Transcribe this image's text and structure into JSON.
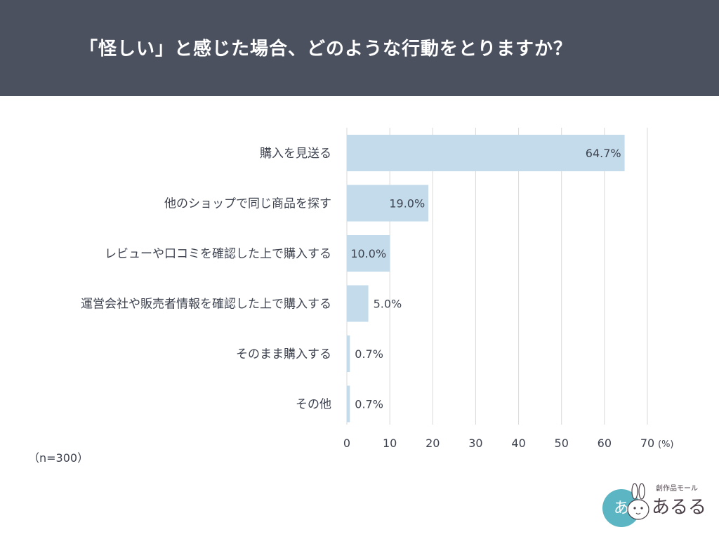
{
  "header": {
    "title": "「怪しい」と感じた場合、どのような行動をとりますか？"
  },
  "note": "（n=300）",
  "logo": {
    "tagline": "創作品モール",
    "name": "あるる",
    "badge": "あ"
  },
  "colors": {
    "header_bg": "#4b515f",
    "bar": "#c3dbea",
    "grid": "#d9d9d9",
    "text": "#3e4350",
    "logo_circle": "#5bb5c2",
    "logo_text": "#4a3f47"
  },
  "chart_data": {
    "type": "bar",
    "orientation": "horizontal",
    "categories": [
      "購入を見送る",
      "他のショップで同じ商品を探す",
      "レビューや口コミを確認した上で購入する",
      "運営会社や販売者情報を確認した上で購入する",
      "そのまま購入する",
      "その他"
    ],
    "values": [
      64.7,
      19.0,
      10.0,
      5.0,
      0.7,
      0.7
    ],
    "value_labels": [
      "64.7%",
      "19.0%",
      "10.0%",
      "5.0%",
      "0.7%",
      "0.7%"
    ],
    "xlim": [
      0,
      70
    ],
    "xticks": [
      0,
      10,
      20,
      30,
      40,
      50,
      60,
      70
    ],
    "xunit": "(%)",
    "grid": "vertical"
  }
}
